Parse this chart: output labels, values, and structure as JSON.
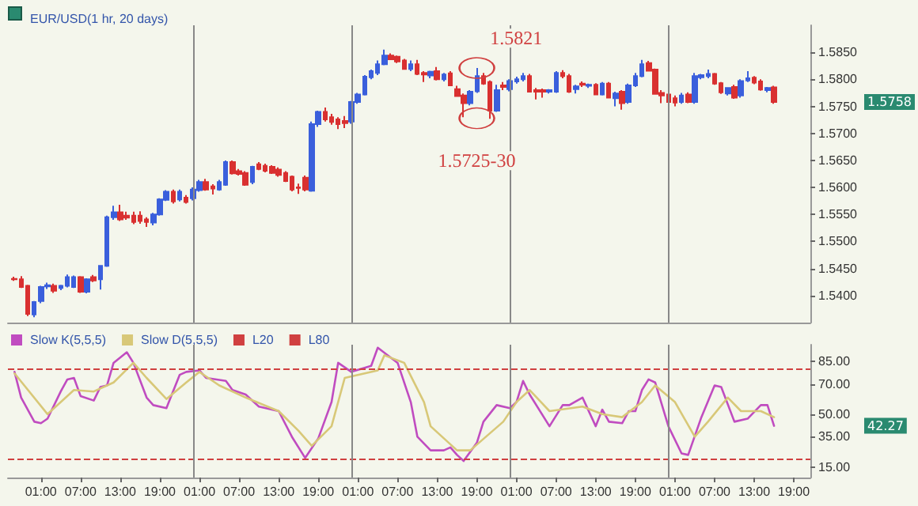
{
  "chart_data": [
    {
      "type": "candlestick",
      "title": "EUR/USD(1 hr, 20 days)",
      "tick_labels": "y",
      "x": [
        "--01-01T21:00",
        "--01-01T22:00",
        "--01-01T23:00",
        "--01-02T00:00",
        "--01-02T01:00",
        "--01-02T02:00",
        "--01-02T03:00",
        "--01-02T04:00",
        "--01-02T05:00",
        "--01-02T06:00",
        "--01-02T07:00",
        "--01-02T08:00",
        "--01-02T09:00",
        "--01-02T10:00",
        "--01-02T11:00",
        "--01-02T12:00",
        "--01-02T13:00",
        "--01-02T14:00",
        "--01-02T15:00",
        "--01-02T16:00",
        "--01-02T17:00",
        "--01-02T18:00",
        "--01-02T19:00",
        "--01-02T20:00",
        "--01-02T21:00",
        "--01-02T22:00",
        "--01-02T23:00",
        "--01-03T00:00",
        "--01-03T01:00",
        "--01-03T02:00",
        "--01-03T03:00",
        "--01-03T04:00",
        "--01-03T05:00",
        "--01-03T06:00",
        "--01-03T07:00",
        "--01-03T08:00",
        "--01-03T09:00",
        "--01-03T10:00",
        "--01-03T11:00",
        "--01-03T12:00",
        "--01-03T13:00",
        "--01-03T14:00",
        "--01-03T15:00",
        "--01-03T16:00",
        "--01-03T17:00",
        "--01-03T18:00",
        "--01-03T19:00",
        "--01-03T20:00",
        "--01-03T21:00",
        "--01-03T22:00",
        "--01-03T23:00",
        "--01-04T00:00",
        "--01-04T01:00",
        "--01-04T02:00",
        "--01-04T03:00",
        "--01-04T04:00",
        "--01-04T05:00",
        "--01-04T06:00",
        "--01-04T07:00",
        "--01-04T08:00",
        "--01-04T09:00",
        "--01-04T10:00",
        "--01-04T11:00",
        "--01-04T12:00",
        "--01-04T13:00",
        "--01-04T14:00",
        "--01-04T15:00",
        "--01-04T16:00",
        "--01-04T17:00",
        "--01-04T18:00",
        "--01-04T19:00",
        "--01-04T20:00",
        "--01-04T21:00",
        "--01-04T22:00",
        "--01-04T23:00",
        "--01-05T00:00",
        "--01-05T01:00",
        "--01-05T02:00",
        "--01-05T03:00",
        "--01-05T04:00",
        "--01-05T05:00",
        "--01-05T06:00",
        "--01-05T07:00",
        "--01-05T08:00",
        "--01-05T09:00",
        "--01-05T10:00",
        "--01-05T11:00",
        "--01-05T12:00",
        "--01-05T13:00",
        "--01-05T14:00",
        "--01-05T15:00",
        "--01-05T16:00",
        "--01-05T17:00",
        "--01-05T18:00",
        "--01-05T19:00",
        "--01-05T20:00",
        "--01-05T21:00",
        "--01-05T22:00",
        "--01-05T23:00",
        "--01-06T00:00",
        "--01-06T01:00",
        "--01-06T02:00",
        "--01-06T03:00",
        "--01-06T04:00",
        "--01-06T05:00",
        "--01-06T06:00",
        "--01-06T07:00",
        "--01-06T08:00",
        "--01-06T09:00",
        "--01-06T10:00",
        "--01-06T11:00",
        "--01-06T12:00",
        "--01-06T13:00",
        "--01-06T14:00",
        "--01-06T15:00",
        "--01-06T16:00"
      ],
      "ohlc": [
        [
          1.5431,
          1.5435,
          1.5427,
          1.543
        ],
        [
          1.543,
          1.5436,
          1.5414,
          1.5416
        ],
        [
          1.5418,
          1.542,
          1.5362,
          1.5366
        ],
        [
          1.5365,
          1.539,
          1.536,
          1.5388
        ],
        [
          1.539,
          1.5418,
          1.5386,
          1.5416
        ],
        [
          1.5417,
          1.5424,
          1.5412,
          1.5419
        ],
        [
          1.5418,
          1.5422,
          1.5405,
          1.5409
        ],
        [
          1.5414,
          1.542,
          1.541,
          1.5418
        ],
        [
          1.5418,
          1.5439,
          1.5415,
          1.5434
        ],
        [
          1.5416,
          1.5437,
          1.5414,
          1.5434
        ],
        [
          1.5434,
          1.5436,
          1.5405,
          1.5407
        ],
        [
          1.5407,
          1.5432,
          1.5404,
          1.543
        ],
        [
          1.5434,
          1.5438,
          1.5425,
          1.5428
        ],
        [
          1.543,
          1.5455,
          1.5411,
          1.5455
        ],
        [
          1.5455,
          1.5548,
          1.5453,
          1.5545
        ],
        [
          1.5545,
          1.5566,
          1.554,
          1.5554
        ],
        [
          1.5554,
          1.5568,
          1.5538,
          1.5541
        ],
        [
          1.5548,
          1.5555,
          1.554,
          1.5544
        ],
        [
          1.5548,
          1.5555,
          1.5532,
          1.5536
        ],
        [
          1.5548,
          1.5556,
          1.5533,
          1.5538
        ],
        [
          1.5541,
          1.5545,
          1.5527,
          1.5536
        ],
        [
          1.5535,
          1.5553,
          1.553,
          1.555
        ],
        [
          1.555,
          1.558,
          1.5548,
          1.5578
        ],
        [
          1.5577,
          1.5595,
          1.5575,
          1.5592
        ],
        [
          1.5592,
          1.5596,
          1.557,
          1.5574
        ],
        [
          1.5578,
          1.5596,
          1.5574,
          1.5592
        ],
        [
          1.5581,
          1.5586,
          1.557,
          1.5573
        ],
        [
          1.558,
          1.56,
          1.5576,
          1.5596
        ],
        [
          1.5595,
          1.5614,
          1.5592,
          1.561
        ],
        [
          1.561,
          1.5616,
          1.5594,
          1.5596
        ],
        [
          1.5602,
          1.5606,
          1.5587,
          1.5598
        ],
        [
          1.5596,
          1.5614,
          1.5594,
          1.561
        ],
        [
          1.5605,
          1.565,
          1.5603,
          1.5647
        ],
        [
          1.5647,
          1.565,
          1.5624,
          1.5626
        ],
        [
          1.563,
          1.5634,
          1.5622,
          1.5625
        ],
        [
          1.5627,
          1.563,
          1.5603,
          1.5605
        ],
        [
          1.561,
          1.564,
          1.5606,
          1.5638
        ],
        [
          1.5643,
          1.5647,
          1.5632,
          1.5634
        ],
        [
          1.564,
          1.5644,
          1.5628,
          1.5631
        ],
        [
          1.5638,
          1.5641,
          1.5625,
          1.5627
        ],
        [
          1.5633,
          1.5637,
          1.562,
          1.5623
        ],
        [
          1.5627,
          1.563,
          1.561,
          1.5612
        ],
        [
          1.562,
          1.5622,
          1.5593,
          1.5596
        ],
        [
          1.56,
          1.5607,
          1.5588,
          1.5599
        ],
        [
          1.5618,
          1.5622,
          1.5593,
          1.5596
        ],
        [
          1.5594,
          1.5722,
          1.5592,
          1.5717
        ],
        [
          1.5717,
          1.5742,
          1.5712,
          1.574
        ],
        [
          1.574,
          1.5748,
          1.5722,
          1.5726
        ],
        [
          1.573,
          1.5736,
          1.5716,
          1.5721
        ],
        [
          1.5726,
          1.573,
          1.5708,
          1.5717
        ],
        [
          1.5723,
          1.5732,
          1.571,
          1.5719
        ],
        [
          1.5722,
          1.576,
          1.5718,
          1.5758
        ],
        [
          1.5758,
          1.5775,
          1.5755,
          1.5772
        ],
        [
          1.5772,
          1.5808,
          1.577,
          1.5805
        ],
        [
          1.5804,
          1.5818,
          1.58,
          1.5815
        ],
        [
          1.5812,
          1.5835,
          1.5808,
          1.5828
        ],
        [
          1.5828,
          1.5855,
          1.5826,
          1.5844
        ],
        [
          1.5844,
          1.5848,
          1.5836,
          1.5837
        ],
        [
          1.5842,
          1.5844,
          1.583,
          1.5833
        ],
        [
          1.5835,
          1.5838,
          1.5818,
          1.5819
        ],
        [
          1.5819,
          1.5835,
          1.5815,
          1.5828
        ],
        [
          1.5828,
          1.5836,
          1.5808,
          1.581
        ],
        [
          1.5812,
          1.5815,
          1.5795,
          1.5809
        ],
        [
          1.5807,
          1.5816,
          1.5802,
          1.5814
        ],
        [
          1.5815,
          1.5823,
          1.5798,
          1.58
        ],
        [
          1.58,
          1.5812,
          1.5796,
          1.5809
        ],
        [
          1.5811,
          1.5815,
          1.5788,
          1.5789
        ],
        [
          1.5782,
          1.5788,
          1.5768,
          1.5769
        ],
        [
          1.577,
          1.5774,
          1.573,
          1.5756
        ],
        [
          1.5756,
          1.578,
          1.5752,
          1.5777
        ],
        [
          1.5778,
          1.5821,
          1.5775,
          1.5806
        ],
        [
          1.5806,
          1.5812,
          1.579,
          1.5792
        ],
        [
          1.5795,
          1.5798,
          1.5727,
          1.5742
        ],
        [
          1.5742,
          1.579,
          1.574,
          1.578
        ],
        [
          1.5789,
          1.5795,
          1.578,
          1.5786
        ],
        [
          1.5782,
          1.58,
          1.5778,
          1.5797
        ],
        [
          1.5796,
          1.5805,
          1.5792,
          1.58
        ],
        [
          1.58,
          1.5812,
          1.5796,
          1.5806
        ],
        [
          1.5806,
          1.581,
          1.5776,
          1.5777
        ],
        [
          1.578,
          1.5784,
          1.5763,
          1.5777
        ],
        [
          1.578,
          1.5783,
          1.5766,
          1.5777
        ],
        [
          1.5777,
          1.5782,
          1.5774,
          1.578
        ],
        [
          1.5777,
          1.5815,
          1.5775,
          1.5812
        ],
        [
          1.5812,
          1.5817,
          1.5802,
          1.5806
        ],
        [
          1.5806,
          1.581,
          1.5775,
          1.5777
        ],
        [
          1.5782,
          1.579,
          1.5774,
          1.5787
        ],
        [
          1.5792,
          1.5796,
          1.5786,
          1.579
        ],
        [
          1.5788,
          1.5792,
          1.5784,
          1.579
        ],
        [
          1.579,
          1.5793,
          1.5771,
          1.5772
        ],
        [
          1.5772,
          1.5795,
          1.577,
          1.5792
        ],
        [
          1.5792,
          1.5795,
          1.5765,
          1.5766
        ],
        [
          1.5765,
          1.5777,
          1.575,
          1.5774
        ],
        [
          1.5777,
          1.578,
          1.5744,
          1.5756
        ],
        [
          1.5758,
          1.5792,
          1.5755,
          1.5789
        ],
        [
          1.5789,
          1.5812,
          1.5786,
          1.5806
        ],
        [
          1.5806,
          1.5836,
          1.5804,
          1.5828
        ],
        [
          1.583,
          1.5834,
          1.5815,
          1.5816
        ],
        [
          1.5818,
          1.582,
          1.5772,
          1.5773
        ],
        [
          1.5775,
          1.578,
          1.5756,
          1.577
        ],
        [
          1.5772,
          1.5776,
          1.5756,
          1.5758
        ],
        [
          1.5765,
          1.577,
          1.575,
          1.5757
        ],
        [
          1.5758,
          1.5775,
          1.5755,
          1.577
        ],
        [
          1.5772,
          1.5776,
          1.5756,
          1.5758
        ],
        [
          1.5758,
          1.5812,
          1.5755,
          1.5806
        ],
        [
          1.5804,
          1.581,
          1.58,
          1.5808
        ],
        [
          1.5806,
          1.5818,
          1.5802,
          1.581
        ],
        [
          1.581,
          1.5812,
          1.579,
          1.5792
        ],
        [
          1.5793,
          1.5795,
          1.5773,
          1.5776
        ],
        [
          1.5774,
          1.5785,
          1.577,
          1.5784
        ],
        [
          1.5786,
          1.579,
          1.5764,
          1.5766
        ],
        [
          1.577,
          1.58,
          1.5766,
          1.5797
        ],
        [
          1.5798,
          1.5815,
          1.5795,
          1.5802
        ],
        [
          1.5803,
          1.5806,
          1.5791,
          1.5794
        ],
        [
          1.5796,
          1.58,
          1.5779,
          1.5781
        ],
        [
          1.578,
          1.5786,
          1.5776,
          1.5784
        ],
        [
          1.5785,
          1.5788,
          1.5755,
          1.5758
        ]
      ],
      "colors": [
        "#d93030",
        "#d93030",
        "#d93030",
        "#3a5fdc",
        "#3a5fdc",
        "#3a5fdc",
        "#d93030",
        "#3a5fdc",
        "#3a5fdc",
        "#3a5fdc",
        "#d93030",
        "#3a5fdc",
        "#d93030",
        "#3a5fdc",
        "#3a5fdc",
        "#3a5fdc",
        "#d93030",
        "#d93030",
        "#d93030",
        "#d93030",
        "#d93030",
        "#3a5fdc",
        "#3a5fdc",
        "#3a5fdc",
        "#d93030",
        "#3a5fdc",
        "#d93030",
        "#3a5fdc",
        "#3a5fdc",
        "#d93030",
        "#d93030",
        "#3a5fdc",
        "#3a5fdc",
        "#d93030",
        "#d93030",
        "#d93030",
        "#3a5fdc",
        "#d93030",
        "#d93030",
        "#d93030",
        "#d93030",
        "#d93030",
        "#d93030",
        "#d93030",
        "#d93030",
        "#3a5fdc",
        "#3a5fdc",
        "#d93030",
        "#d93030",
        "#d93030",
        "#d93030",
        "#3a5fdc",
        "#3a5fdc",
        "#3a5fdc",
        "#3a5fdc",
        "#3a5fdc",
        "#3a5fdc",
        "#d93030",
        "#d93030",
        "#d93030",
        "#3a5fdc",
        "#d93030",
        "#d93030",
        "#3a5fdc",
        "#d93030",
        "#3a5fdc",
        "#d93030",
        "#d93030",
        "#d93030",
        "#3a5fdc",
        "#3a5fdc",
        "#d93030",
        "#d93030",
        "#3a5fdc",
        "#d93030",
        "#3a5fdc",
        "#3a5fdc",
        "#3a5fdc",
        "#d93030",
        "#d93030",
        "#d93030",
        "#3a5fdc",
        "#3a5fdc",
        "#d93030",
        "#d93030",
        "#3a5fdc",
        "#d93030",
        "#3a5fdc",
        "#d93030",
        "#3a5fdc",
        "#d93030",
        "#3a5fdc",
        "#d93030",
        "#3a5fdc",
        "#3a5fdc",
        "#3a5fdc",
        "#d93030",
        "#d93030",
        "#d93030",
        "#d93030",
        "#d93030",
        "#3a5fdc",
        "#d93030",
        "#3a5fdc",
        "#3a5fdc",
        "#3a5fdc",
        "#d93030",
        "#d93030",
        "#3a5fdc",
        "#d93030",
        "#3a5fdc",
        "#3a5fdc",
        "#d93030",
        "#d93030",
        "#3a5fdc",
        "#d93030"
      ],
      "xlim": [
        "--01-01T20:00",
        "--01-06T21:30"
      ],
      "ylim": [
        1.535,
        1.59
      ],
      "yticks": [
        {
          "value": 1.54,
          "label": "1.5400"
        },
        {
          "value": 1.545,
          "label": "1.5450"
        },
        {
          "value": 1.55,
          "label": "1.5500"
        },
        {
          "value": 1.555,
          "label": "1.5550"
        },
        {
          "value": 1.56,
          "label": "1.5600"
        },
        {
          "value": 1.565,
          "label": "1.5650"
        },
        {
          "value": 1.57,
          "label": "1.5700"
        },
        {
          "value": 1.575,
          "label": "1.5750"
        },
        {
          "value": 1.58,
          "label": "1.5800"
        },
        {
          "value": 1.585,
          "label": "1.5850"
        }
      ],
      "ref_lines": [
        {
          "axis": "x",
          "value": "--01-03T00:00",
          "color": "#888888"
        },
        {
          "axis": "x",
          "value": "--01-04T00:00",
          "color": "#888888"
        },
        {
          "axis": "x",
          "value": "--01-05T00:00",
          "color": "#888888"
        },
        {
          "axis": "x",
          "value": "--01-06T00:00",
          "color": "#888888"
        }
      ],
      "annotations": [
        {
          "text": "1.5821",
          "x": "--01-04T19:00",
          "y": 1.5821
        },
        {
          "text": "1.5725-30",
          "x": "--01-04T19:00",
          "y": 1.5728
        },
        "1.5758"
      ]
    },
    {
      "type": "line",
      "legend": "top left",
      "marker": "none",
      "line_style": "solid",
      "series": [
        {
          "name": "Slow K(5,5,5)",
          "color": "#c04cc0",
          "x": [
            "--01-01T21:00",
            "--01-01T22:00",
            "--01-02T00:00",
            "--01-02T01:00",
            "--01-02T02:00",
            "--01-02T04:00",
            "--01-02T05:00",
            "--01-02T06:00",
            "--01-02T07:00",
            "--01-02T09:00",
            "--01-02T10:00",
            "--01-02T11:00",
            "--01-02T12:00",
            "--01-02T14:00",
            "--01-02T15:00",
            "--01-02T17:00",
            "--01-02T18:00",
            "--01-02T20:00",
            "--01-02T22:00",
            "--01-02T23:00",
            "--01-03T01:00",
            "--01-03T02:00",
            "--01-03T05:00",
            "--01-03T06:00",
            "--01-03T08:00",
            "--01-03T10:00",
            "--01-03T13:00",
            "--01-03T15:00",
            "--01-03T17:00",
            "--01-03T19:00",
            "--01-03T21:00",
            "--01-03T22:00",
            "--01-04T00:00",
            "--01-04T03:00",
            "--01-04T04:00",
            "--01-04T07:00",
            "--01-04T09:00",
            "--01-04T10:00",
            "--01-04T12:00",
            "--01-04T14:00",
            "--01-04T15:00",
            "--01-04T16:00",
            "--01-04T17:00",
            "--01-04T19:00",
            "--01-04T20:00",
            "--01-04T22:00",
            "--01-05T00:00",
            "--01-05T01:00",
            "--01-05T02:00",
            "--01-05T03:00",
            "--01-05T06:00",
            "--01-05T08:00",
            "--01-05T09:00",
            "--01-05T11:00",
            "--01-05T13:00",
            "--01-05T14:00",
            "--01-05T15:00",
            "--01-05T17:00",
            "--01-05T18:00",
            "--01-05T19:00",
            "--01-05T20:00",
            "--01-05T21:00",
            "--01-05T22:00",
            "--01-06T00:00",
            "--01-06T02:00",
            "--01-06T03:00",
            "--01-06T05:00",
            "--01-06T07:00",
            "--01-06T08:00",
            "--01-06T10:00",
            "--01-06T12:00",
            "--01-06T14:00",
            "--01-06T15:00",
            "--01-06T16:00"
          ],
          "values": [
            78,
            61,
            45,
            44,
            47,
            65,
            73,
            74,
            62,
            59,
            68,
            69,
            84,
            91,
            84,
            61,
            56,
            54,
            76,
            78,
            79,
            74,
            72,
            66,
            63,
            55,
            52,
            35,
            21,
            34,
            58,
            84,
            78,
            82,
            94,
            84,
            58,
            35,
            26,
            26,
            28,
            23,
            19,
            31,
            45,
            56,
            54,
            58,
            72,
            63,
            42,
            56,
            56,
            61,
            42,
            53,
            45,
            44,
            52,
            52,
            66,
            73,
            71,
            42,
            24,
            23,
            48,
            69,
            68,
            45,
            47,
            56,
            56,
            42.27
          ]
        },
        {
          "name": "Slow D(5,5,5)",
          "color": "#d8c878",
          "x": [
            "--01-01T21:00",
            "--01-02T02:00",
            "--01-02T06:00",
            "--01-02T09:00",
            "--01-02T12:00",
            "--01-02T15:00",
            "--01-02T17:00",
            "--01-02T20:00",
            "--01-02T23:00",
            "--01-03T01:00",
            "--01-03T04:00",
            "--01-03T08:00",
            "--01-03T13:00",
            "--01-03T16:00",
            "--01-03T18:00",
            "--01-03T21:00",
            "--01-03T23:00",
            "--01-04T04:00",
            "--01-04T05:00",
            "--01-04T08:00",
            "--01-04T11:00",
            "--01-04T12:00",
            "--01-04T16:00",
            "--01-04T18:00",
            "--01-04T23:00",
            "--01-05T01:00",
            "--01-05T03:00",
            "--01-05T06:00",
            "--01-05T11:00",
            "--01-05T14:00",
            "--01-05T17:00",
            "--01-05T20:00",
            "--01-05T22:00",
            "--01-06T01:00",
            "--01-06T04:00",
            "--01-06T06:00",
            "--01-06T09:00",
            "--01-06T11:00",
            "--01-06T14:00",
            "--01-06T16:00"
          ],
          "values": [
            77,
            50,
            66,
            65,
            71,
            84,
            74,
            60,
            71,
            78,
            69,
            61,
            52,
            39,
            29,
            42,
            74,
            79,
            89,
            84,
            58,
            42,
            26,
            26,
            45,
            58,
            66,
            52,
            55,
            50,
            48,
            58,
            69,
            58,
            35,
            45,
            61,
            52,
            52,
            48
          ]
        }
      ],
      "xlim": [
        "--01-01T20:00",
        "--01-06T21:30"
      ],
      "xticks": [
        {
          "value": "--01-02T01:00",
          "label": "01:00"
        },
        {
          "value": "--01-02T07:00",
          "label": "07:00"
        },
        {
          "value": "--01-02T13:00",
          "label": "13:00"
        },
        {
          "value": "--01-02T19:00",
          "label": "19:00"
        },
        {
          "value": "--01-03T01:00",
          "label": "01:00"
        },
        {
          "value": "--01-03T07:00",
          "label": "07:00"
        },
        {
          "value": "--01-03T13:00",
          "label": "13:00"
        },
        {
          "value": "--01-03T19:00",
          "label": "19:00"
        },
        {
          "value": "--01-04T01:00",
          "label": "01:00"
        },
        {
          "value": "--01-04T07:00",
          "label": "07:00"
        },
        {
          "value": "--01-04T13:00",
          "label": "13:00"
        },
        {
          "value": "--01-04T19:00",
          "label": "19:00"
        },
        {
          "value": "--01-05T01:00",
          "label": "01:00"
        },
        {
          "value": "--01-05T07:00",
          "label": "07:00"
        },
        {
          "value": "--01-05T13:00",
          "label": "13:00"
        },
        {
          "value": "--01-05T19:00",
          "label": "19:00"
        },
        {
          "value": "--01-06T01:00",
          "label": "01:00"
        },
        {
          "value": "--01-06T07:00",
          "label": "07:00"
        },
        {
          "value": "--01-06T13:00",
          "label": "13:00"
        },
        {
          "value": "--01-06T19:00",
          "label": "19:00"
        }
      ],
      "ylim": [
        8,
        96
      ],
      "yticks": [
        {
          "value": 15,
          "label": "15.00"
        },
        {
          "value": 35,
          "label": "35.00"
        },
        {
          "value": 50,
          "label": "50.00"
        },
        {
          "value": 70,
          "label": "70.00"
        },
        {
          "value": 85,
          "label": "85.00"
        }
      ],
      "ref_lines": [
        {
          "axis": "y",
          "value": 20,
          "label": "L20",
          "color": "#d04040",
          "line_style": "dashed"
        },
        {
          "axis": "y",
          "value": 80,
          "label": "L80",
          "color": "#d04040",
          "line_style": "dashed"
        },
        {
          "axis": "x",
          "value": "--01-03T00:00",
          "color": "#888888"
        },
        {
          "axis": "x",
          "value": "--01-04T00:00",
          "color": "#888888"
        },
        {
          "axis": "x",
          "value": "--01-05T00:00",
          "color": "#888888"
        },
        {
          "axis": "x",
          "value": "--01-06T00:00",
          "color": "#888888"
        }
      ],
      "annotations": [
        "42.27"
      ]
    }
  ]
}
